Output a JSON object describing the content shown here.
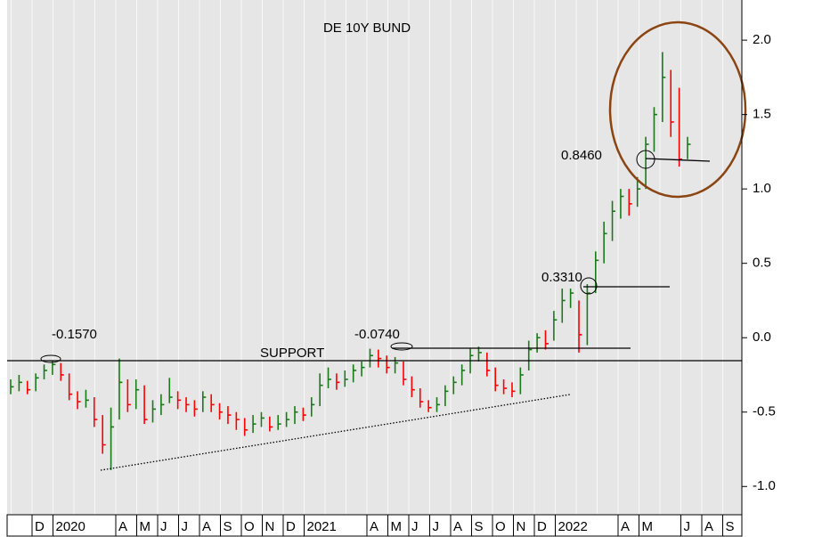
{
  "chart_data": {
    "type": "ohlc",
    "title": "DE 10Y BUND",
    "categories": [
      null,
      "D",
      "2020",
      null,
      null,
      "A",
      "M",
      "J",
      "J",
      "A",
      "S",
      "O",
      "N",
      "D",
      "2021",
      null,
      null,
      "A",
      "M",
      "J",
      "J",
      "A",
      "S",
      "O",
      "N",
      "D",
      "2022",
      null,
      null,
      "A",
      "M",
      null,
      "J",
      "A",
      "S"
    ],
    "high": [
      -0.28,
      -0.25,
      -0.29,
      -0.24,
      -0.18,
      -0.157,
      -0.17,
      -0.24,
      -0.36,
      -0.35,
      -0.4,
      -0.52,
      -0.47,
      -0.14,
      -0.28,
      -0.28,
      -0.32,
      -0.42,
      -0.38,
      -0.27,
      -0.36,
      -0.4,
      -0.42,
      -0.36,
      -0.38,
      -0.44,
      -0.46,
      -0.5,
      -0.54,
      -0.52,
      -0.5,
      -0.53,
      -0.52,
      -0.5,
      -0.46,
      -0.47,
      -0.4,
      -0.24,
      -0.2,
      -0.24,
      -0.22,
      -0.18,
      -0.16,
      -0.074,
      -0.08,
      -0.12,
      -0.13,
      -0.16,
      -0.26,
      -0.34,
      -0.42,
      -0.4,
      -0.32,
      -0.26,
      -0.18,
      -0.07,
      -0.06,
      -0.1,
      -0.2,
      -0.28,
      -0.3,
      -0.2,
      -0.02,
      0.03,
      0.05,
      0.18,
      0.33,
      0.33,
      0.25,
      0.36,
      0.58,
      0.78,
      0.92,
      1.0,
      1.0,
      1.08,
      1.35,
      1.55,
      1.92,
      1.8,
      1.68,
      1.35
    ],
    "low": [
      -0.38,
      -0.36,
      -0.38,
      -0.36,
      -0.28,
      -0.25,
      -0.29,
      -0.42,
      -0.48,
      -0.47,
      -0.6,
      -0.78,
      -0.89,
      -0.55,
      -0.5,
      -0.48,
      -0.58,
      -0.57,
      -0.52,
      -0.44,
      -0.48,
      -0.5,
      -0.53,
      -0.5,
      -0.5,
      -0.55,
      -0.58,
      -0.62,
      -0.66,
      -0.64,
      -0.6,
      -0.63,
      -0.62,
      -0.6,
      -0.58,
      -0.56,
      -0.53,
      -0.46,
      -0.34,
      -0.35,
      -0.33,
      -0.3,
      -0.26,
      -0.2,
      -0.2,
      -0.24,
      -0.24,
      -0.32,
      -0.4,
      -0.47,
      -0.5,
      -0.5,
      -0.46,
      -0.38,
      -0.32,
      -0.24,
      -0.16,
      -0.26,
      -0.36,
      -0.38,
      -0.4,
      -0.38,
      -0.22,
      -0.1,
      -0.08,
      -0.02,
      0.1,
      0.2,
      -0.1,
      -0.05,
      0.3,
      0.5,
      0.65,
      0.8,
      0.82,
      0.88,
      1.0,
      1.25,
      1.45,
      1.35,
      1.15,
      1.2
    ],
    "close": [
      -0.33,
      -0.3,
      -0.35,
      -0.27,
      -0.22,
      -0.18,
      -0.25,
      -0.38,
      -0.43,
      -0.42,
      -0.55,
      -0.72,
      -0.6,
      -0.3,
      -0.45,
      -0.35,
      -0.55,
      -0.48,
      -0.45,
      -0.4,
      -0.42,
      -0.45,
      -0.48,
      -0.4,
      -0.45,
      -0.5,
      -0.52,
      -0.55,
      -0.62,
      -0.58,
      -0.54,
      -0.6,
      -0.58,
      -0.55,
      -0.5,
      -0.52,
      -0.45,
      -0.32,
      -0.28,
      -0.3,
      -0.28,
      -0.22,
      -0.2,
      -0.12,
      -0.14,
      -0.2,
      -0.17,
      -0.28,
      -0.35,
      -0.43,
      -0.47,
      -0.45,
      -0.36,
      -0.3,
      -0.22,
      -0.12,
      -0.1,
      -0.22,
      -0.32,
      -0.34,
      -0.36,
      -0.25,
      -0.08,
      0.0,
      -0.04,
      0.12,
      0.25,
      0.3,
      0.02,
      0.3,
      0.52,
      0.7,
      0.85,
      0.95,
      0.9,
      1.0,
      1.3,
      1.5,
      1.75,
      1.45,
      1.2,
      1.3
    ],
    "up_color": "#1a7a1a",
    "down_color": "#ff0000",
    "ylim": [
      -1.19,
      2.27
    ],
    "yticks": [
      {
        "value": 2.0,
        "label": "2.0"
      },
      1.5,
      {
        "value": 1.0,
        "label": "1.0"
      },
      0.5,
      {
        "value": 0.0,
        "label": "0.0"
      },
      -0.5,
      {
        "value": -1.0,
        "label": "-1.0"
      }
    ],
    "annotations": [
      "-0.1570",
      "SUPPORT",
      "-0.0740",
      "0.3310",
      "0.8460"
    ]
  }
}
